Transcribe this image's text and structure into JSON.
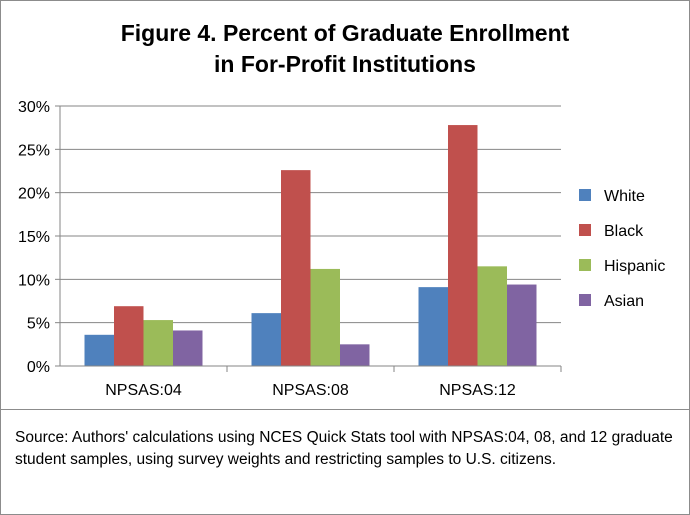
{
  "chart_data": {
    "type": "bar",
    "title_lines": [
      "Figure 4. Percent of Graduate Enrollment",
      "in For-Profit Institutions"
    ],
    "categories": [
      "NPSAS:04",
      "NPSAS:08",
      "NPSAS:12"
    ],
    "series": [
      {
        "name": "White",
        "values": [
          3.6,
          6.1,
          9.1
        ]
      },
      {
        "name": "Black",
        "values": [
          6.9,
          22.6,
          27.8
        ]
      },
      {
        "name": "Hispanic",
        "values": [
          5.3,
          11.2,
          11.5
        ]
      },
      {
        "name": "Asian",
        "values": [
          4.1,
          2.5,
          9.4
        ]
      }
    ],
    "yticks": [
      "0%",
      "5%",
      "10%",
      "15%",
      "20%",
      "25%",
      "30%"
    ],
    "ylim": [
      0,
      30
    ],
    "grid": true,
    "legend": "right",
    "colors": [
      "#4f81bd",
      "#c0504d",
      "#9bbb59",
      "#8064a2"
    ]
  },
  "source": "Source: Authors' calculations using NCES Quick Stats tool with NPSAS:04, 08, and 12 graduate student samples, using survey weights and restricting samples to U.S. citizens."
}
